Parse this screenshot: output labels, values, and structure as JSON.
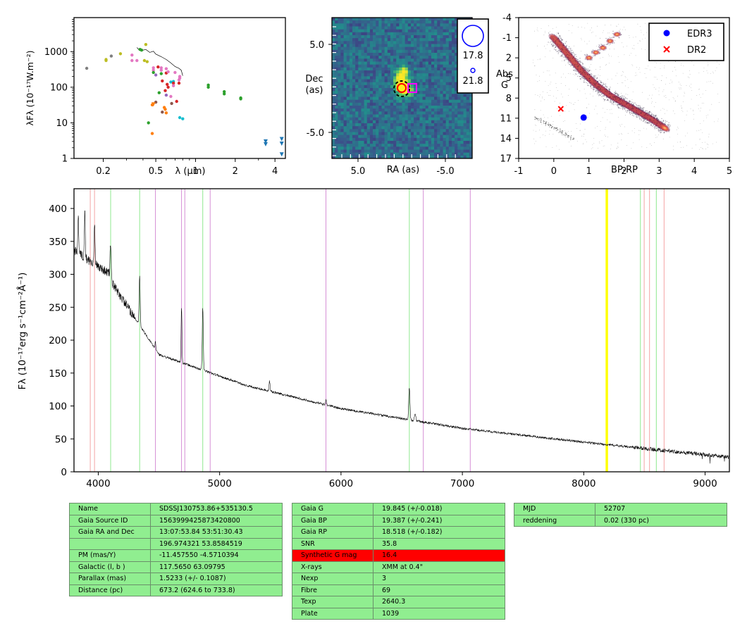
{
  "sed": {
    "ylabel": "λFλ (10⁻¹⁷W.m⁻²)",
    "xlabel": "λ (µm)",
    "x_ticks": [
      "0.2",
      "0.5",
      "1",
      "2",
      "4"
    ],
    "y_ticks": [
      "1",
      "10",
      "100",
      "1000"
    ],
    "xlim": [
      0.12,
      4.8
    ],
    "ylim": [
      1,
      9000
    ],
    "xscale": "log",
    "yscale": "log",
    "colors": {
      "gray": "#7f7f7f",
      "olive": "#bcbd22",
      "pink": "#e377c2",
      "green": "#2ca02c",
      "red": "#d62728",
      "purple": "#9467bd",
      "cyan": "#17becf",
      "orange": "#ff7f0e",
      "blue": "#1f77b4",
      "brown": "#8c564b"
    }
  },
  "image_panel": {
    "xlabel": "RA (as)",
    "ylabel_1": "Dec",
    "ylabel_2": "(as)",
    "x_ticks": [
      "5.0",
      "-5.0"
    ],
    "y_ticks": [
      "5.0",
      "-5.0"
    ],
    "legend": [
      "17.8",
      "21.8"
    ],
    "colors": {
      "ring_black": "#000000",
      "ring_red": "#ff0000",
      "ring_yellow": "#ffff00",
      "square": "#ff00ff",
      "legend_circle": "#0000ff"
    }
  },
  "hrd": {
    "xlabel": "BP-RP",
    "ylabel_1": "Abs",
    "ylabel_2": "G",
    "x_ticks": [
      "-1",
      "0",
      "1",
      "2",
      "3",
      "4",
      "5"
    ],
    "y_ticks": [
      "-4",
      "-1",
      "2",
      "5",
      "8",
      "11",
      "14",
      "17"
    ],
    "xlim": [
      -1,
      5
    ],
    "ylim": [
      17,
      -4
    ],
    "legend": [
      {
        "label": "EDR3",
        "marker": "circle",
        "color": "#0000ff"
      },
      {
        "label": "DR2",
        "marker": "x",
        "color": "#ff0000"
      }
    ],
    "points": {
      "edr3": {
        "x": 0.85,
        "y": 10.9
      },
      "dr2": {
        "x": 0.2,
        "y": 9.6
      }
    }
  },
  "spectrum": {
    "ylabel": "Fλ (10⁻¹⁷erg s⁻¹cm⁻²Å⁻¹)",
    "x_ticks": [
      "4000",
      "5000",
      "6000",
      "7000",
      "8000",
      "9000"
    ],
    "y_ticks": [
      "0",
      "50",
      "100",
      "150",
      "200",
      "250",
      "300",
      "350",
      "400"
    ],
    "xlim": [
      3800,
      9200
    ],
    "ylim": [
      0,
      430
    ],
    "lines_red": [
      3934,
      3969,
      8498,
      8542,
      8662
    ],
    "lines_green": [
      4102,
      4341,
      4861,
      6563,
      8467,
      8598
    ],
    "lines_violet": [
      4471,
      4686,
      4713,
      4922,
      5876,
      6678,
      7065
    ],
    "band_yellow": [
      8180,
      8200
    ],
    "colors": {
      "red": "#f4a4a4",
      "green": "#8ee88e",
      "violet": "#d68fd6",
      "band": "#ffff00"
    }
  },
  "table1": [
    [
      "Name",
      "SDSSJ130753.86+535130.5"
    ],
    [
      "Gaia Source ID",
      "1563999425873420800"
    ],
    [
      "Gaia RA and Dec",
      "13:07:53.84    53:51:30.43"
    ],
    [
      "",
      "196.974321    53.8584519"
    ],
    [
      "PM (mas/Y)",
      "-11.457550    -4.5710394"
    ],
    [
      "Galactic (l, b )",
      "117.5650    63.09795"
    ],
    [
      "Parallax (mas)",
      "1.5233 (+/- 0.1087)"
    ],
    [
      "Distance (pc)",
      "673.2 (624.6 to 733.8)"
    ]
  ],
  "table2": [
    [
      "Gaia G",
      "19.845 (+/-0.018)"
    ],
    [
      "Gaia BP",
      "19.387 (+/-0.241)"
    ],
    [
      "Gaia RP",
      "18.518 (+/-0.182)"
    ],
    [
      "SNR",
      "35.8"
    ],
    [
      "Synthetic G mag",
      "16.4"
    ],
    [
      "X-rays",
      "XMM at 0.4\""
    ],
    [
      "Nexp",
      "3"
    ],
    [
      "Fibre",
      "69"
    ],
    [
      "Texp",
      "2640.3"
    ],
    [
      "Plate",
      "1039"
    ]
  ],
  "table2_highlight_row": 4,
  "table3": [
    [
      "MJD",
      "52707"
    ],
    [
      "reddening",
      "0.02 (330 pc)"
    ]
  ]
}
